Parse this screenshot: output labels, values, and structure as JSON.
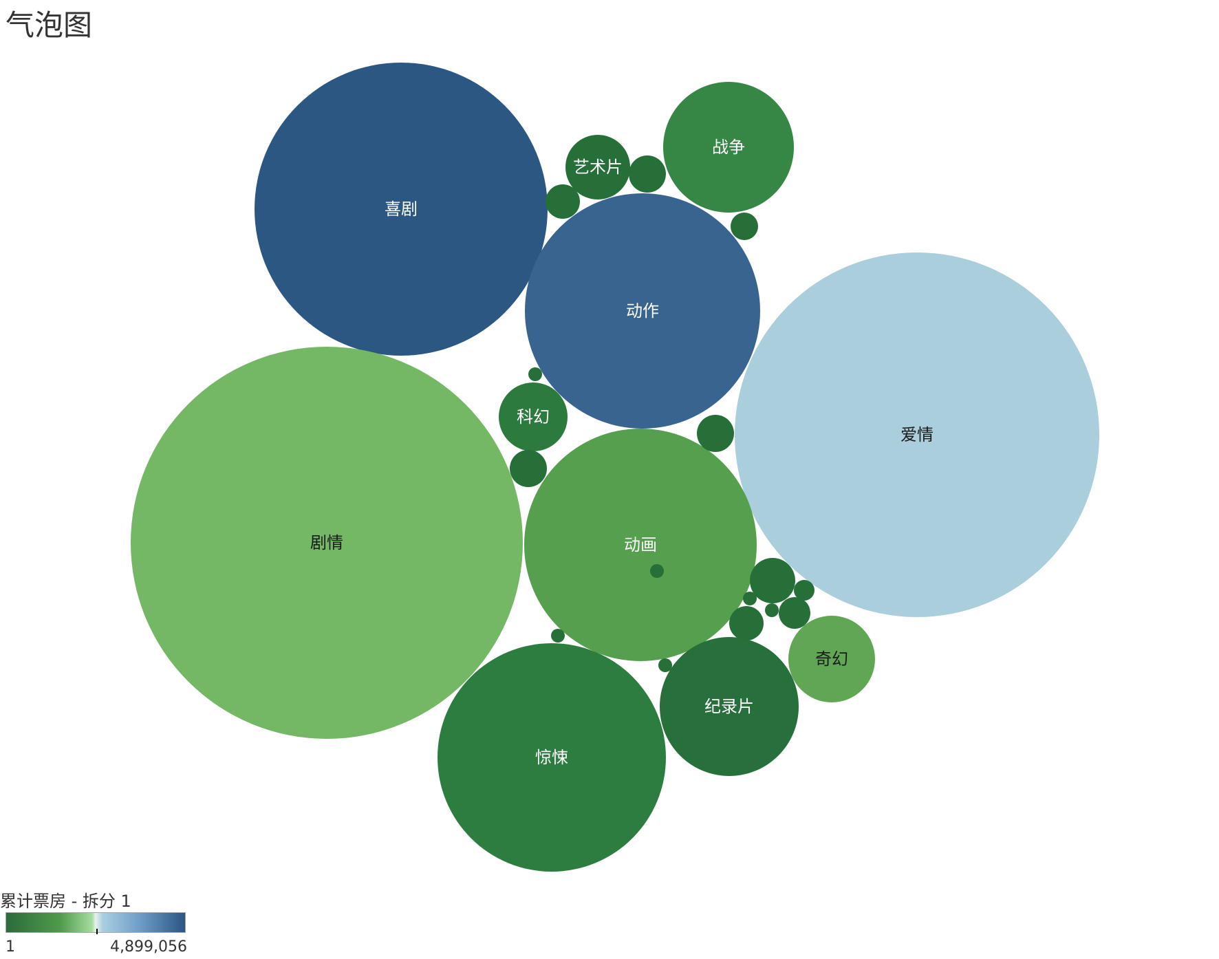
{
  "title": "气泡图",
  "chart_data": {
    "type": "bubble",
    "title": "气泡图",
    "color_measure": "累计票房 - 拆分 1",
    "color_range": {
      "min_label": "1",
      "max_label": "4,899,056"
    },
    "color_scale": [
      "#2c6b3b",
      "#4f9a4b",
      "#a6dca0",
      "#a9cfe0",
      "#6e9cc7",
      "#2b5583"
    ],
    "bubbles": [
      {
        "name": "喜剧",
        "label": "喜剧",
        "color": "#2c5783",
        "label_color": "#ffffff"
      },
      {
        "name": "爱情",
        "label": "爱情",
        "color": "#abcedc",
        "label_color": "#1a1a1a"
      },
      {
        "name": "剧情",
        "label": "剧情",
        "color": "#74b866",
        "label_color": "#1a1a1a"
      },
      {
        "name": "动作",
        "label": "动作",
        "color": "#3a6490",
        "label_color": "#ffffff"
      },
      {
        "name": "动画",
        "label": "动画",
        "color": "#559f4f",
        "label_color": "#ffffff"
      },
      {
        "name": "惊悚",
        "label": "惊悚",
        "color": "#2e7d40",
        "label_color": "#ffffff"
      },
      {
        "name": "纪录片",
        "label": "纪录片",
        "color": "#27703c",
        "label_color": "#ffffff"
      },
      {
        "name": "战争",
        "label": "战争",
        "color": "#368646",
        "label_color": "#ffffff"
      },
      {
        "name": "科幻",
        "label": "科幻",
        "color": "#2d7a3e",
        "label_color": "#ffffff"
      },
      {
        "name": "艺术片",
        "label": "艺术片",
        "color": "#266f39",
        "label_color": "#ffffff"
      },
      {
        "name": "奇幻",
        "label": "奇幻",
        "color": "#61a655",
        "label_color": "#1a1a1a"
      },
      {
        "name": "small-1",
        "label": "",
        "color": "#266f39"
      },
      {
        "name": "small-2",
        "label": "",
        "color": "#266f39"
      },
      {
        "name": "small-3",
        "label": "",
        "color": "#266f39"
      },
      {
        "name": "small-4",
        "label": "",
        "color": "#266f39"
      },
      {
        "name": "small-5",
        "label": "",
        "color": "#266f39"
      },
      {
        "name": "small-6",
        "label": "",
        "color": "#266f39"
      },
      {
        "name": "small-7",
        "label": "",
        "color": "#266f39"
      },
      {
        "name": "small-8",
        "label": "",
        "color": "#266f39"
      },
      {
        "name": "small-9",
        "label": "",
        "color": "#266f39"
      },
      {
        "name": "small-10",
        "label": "",
        "color": "#266f39"
      },
      {
        "name": "small-11",
        "label": "",
        "color": "#266f39"
      },
      {
        "name": "small-12",
        "label": "",
        "color": "#266f39"
      },
      {
        "name": "small-13",
        "label": "",
        "color": "#266f39"
      },
      {
        "name": "small-14",
        "label": "",
        "color": "#266f39"
      },
      {
        "name": "small-15",
        "label": "",
        "color": "#266f39"
      }
    ]
  }
}
